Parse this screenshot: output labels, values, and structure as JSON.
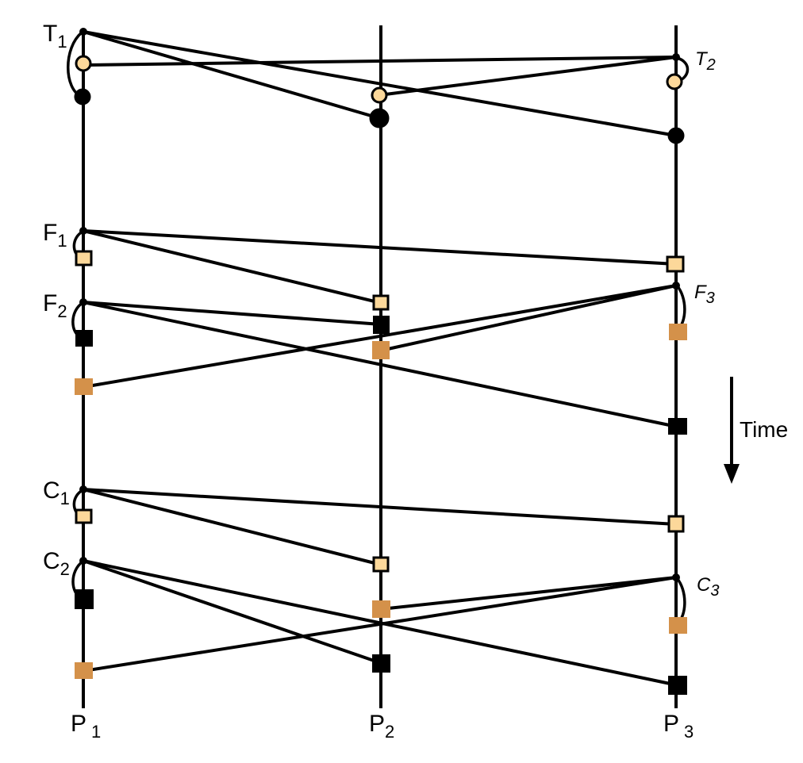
{
  "colors": {
    "stroke": "#000000",
    "light_marker": "#fcd89a",
    "tan_marker": "#d4914a",
    "dark_marker": "#000000"
  },
  "processes": [
    {
      "id": "P1",
      "base": "P",
      "sub": "1"
    },
    {
      "id": "P2",
      "base": "P",
      "sub": "2"
    },
    {
      "id": "P3",
      "base": "P",
      "sub": "3"
    }
  ],
  "event_labels": [
    {
      "id": "T1",
      "base": "T",
      "sub": "1",
      "italic": false
    },
    {
      "id": "T2",
      "base": "T",
      "sub": "2",
      "italic": true
    },
    {
      "id": "F1",
      "base": "F",
      "sub": "1",
      "italic": false
    },
    {
      "id": "F2",
      "base": "F",
      "sub": "2",
      "italic": false
    },
    {
      "id": "F3",
      "base": "F",
      "sub": "3",
      "italic": true
    },
    {
      "id": "C1",
      "base": "C",
      "sub": "1",
      "italic": false
    },
    {
      "id": "C2",
      "base": "C",
      "sub": "2",
      "italic": false
    },
    {
      "id": "C3",
      "base": "C",
      "sub": "3",
      "italic": true
    }
  ],
  "time_label": "Time",
  "time_arrow_icon": "arrow-down-icon"
}
